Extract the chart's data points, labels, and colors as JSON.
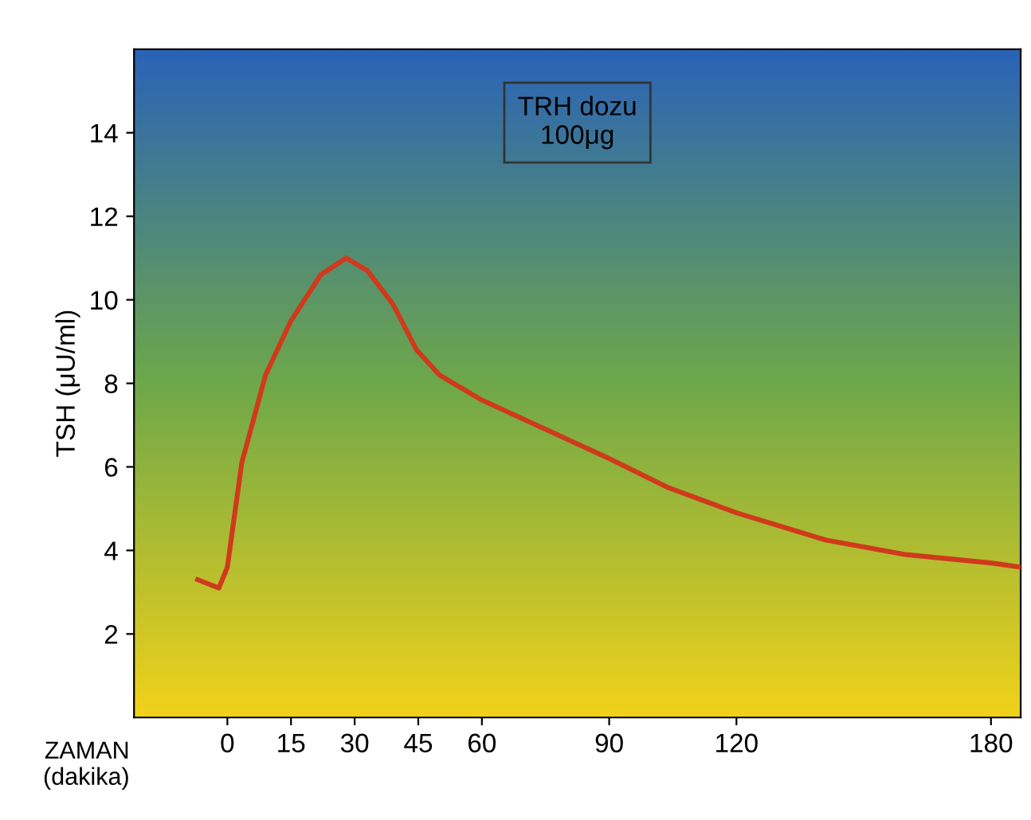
{
  "chart_data": {
    "type": "line",
    "x": [
      -7,
      -2,
      0,
      3.4,
      9,
      15,
      22,
      28,
      33,
      39,
      44.6,
      50,
      60,
      75,
      90,
      104,
      120,
      141,
      160,
      180,
      187
    ],
    "series": [
      {
        "color": "#d03a1c",
        "values": [
          3.3,
          3.1,
          3.6,
          6.1,
          8.2,
          9.5,
          10.6,
          11.0,
          10.7,
          9.9,
          8.8,
          8.2,
          7.6,
          6.9,
          6.2,
          5.5,
          4.9,
          4.25,
          3.9,
          3.7,
          3.6
        ]
      }
    ],
    "xlim": [
      -22,
      187
    ],
    "ylim": [
      0,
      16
    ],
    "xticks": [
      0,
      15,
      30,
      45,
      60,
      90,
      120,
      180
    ],
    "yticks": [
      2,
      4,
      6,
      8,
      10,
      12,
      14
    ],
    "xlabel": "ZAMAN\n(dakika)",
    "ylabel": "TSH (μU/ml)",
    "annotations": [
      "TRH dozu\n100μg"
    ],
    "grid": false,
    "legend": false,
    "marker": "none",
    "line_style": "solid"
  }
}
